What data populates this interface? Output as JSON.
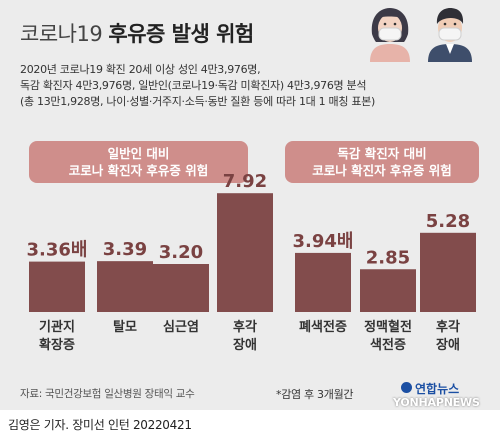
{
  "header": {
    "title_light": "코로나19",
    "title_bold": "후유증 발생 위험"
  },
  "description": {
    "line1": "2020년 코로나19 확진 20세 이상 성인 4만3,976명,",
    "line2": "독감 확진자 4만3,976명, 일반인(코로나19·독감 미확진자) 4만3,976명 분석",
    "line3": "(총 13만1,928명, 나이·성별·거주지·소득·동반 질환 등에 따라 1대 1 매칭 표본)"
  },
  "chart_data": [
    {
      "type": "bar",
      "title": [
        "일반인 대비",
        "코로나 확진자 후유증 위험"
      ],
      "categories": [
        [
          "기관지",
          "확장증"
        ],
        [
          "탈모"
        ],
        [
          "심근염"
        ],
        [
          "후각",
          "장애"
        ]
      ],
      "values": [
        3.36,
        3.39,
        3.2,
        7.92
      ],
      "value_labels": [
        "3.36배",
        "3.39",
        "3.20",
        "7.92"
      ]
    },
    {
      "type": "bar",
      "title": [
        "독감 확진자 대비",
        "코로나 확진자 후유증 위험"
      ],
      "categories": [
        [
          "폐색전증"
        ],
        [
          "정맥혈전",
          "색전증"
        ],
        [
          "후각",
          "장애"
        ]
      ],
      "values": [
        3.94,
        2.85,
        5.28
      ],
      "value_labels": [
        "3.94배",
        "2.85",
        "5.28"
      ]
    }
  ],
  "footer": {
    "source": "자료: 국민건강보험 일산병원 장태익 교수",
    "note": "*감염 후 3개월간",
    "credit": "김영은 기자. 장미선 인턴  20220421",
    "logo_top": "연합뉴스",
    "logo_bottom": "YONHAPNEWS"
  },
  "colors": {
    "bar": "#824c4c",
    "header_bg": "#cf8e8b",
    "value_text": "#7a4242",
    "category_text": "#333333"
  },
  "icons": [
    "woman-with-mask-icon",
    "man-with-mask-icon"
  ]
}
